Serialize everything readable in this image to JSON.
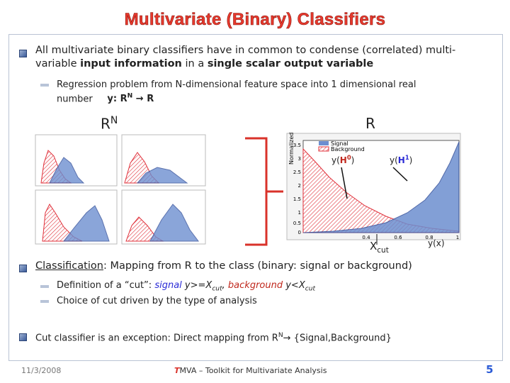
{
  "title": "Multivariate (Binary) Classifiers",
  "intro": {
    "runs": [
      "All multivariate binary classifiers have in common to condense (correlated) multi-variable ",
      "input information",
      " in a ",
      "single scalar output variable"
    ]
  },
  "regression": {
    "runs": [
      "Regression problem from N-dimensional feature space into 1 dimensional real number",
      "y: R",
      "N",
      "→",
      " R"
    ]
  },
  "labels": {
    "rn": "R",
    "rn_sup": "N",
    "r": "R"
  },
  "plot": {
    "legend": [
      "Signal",
      "Background"
    ],
    "ylabel": "Normalized",
    "yticks": [
      "3.5",
      "3",
      "2.5",
      "2",
      "1.5",
      "1",
      "0.5",
      "0"
    ],
    "xticks": [
      "0.4",
      "0.6",
      "0.8",
      "1"
    ],
    "h0": [
      "y(",
      "H",
      "0",
      ")"
    ],
    "h1": [
      "y(",
      "H",
      "1",
      ")"
    ],
    "xcut": [
      "X",
      "cut"
    ],
    "yx": "y(x)"
  },
  "classification": {
    "runs": [
      "Classification",
      ": Mapping from R to the class (binary: signal or background)"
    ]
  },
  "definition": {
    "runs": [
      "Definition of a “cut”: ",
      "signal",
      " y>=X",
      "cut",
      ", ",
      "background",
      " y<X",
      "cut"
    ]
  },
  "choice": "Choice of cut driven by the type of analysis",
  "cut_classifier": {
    "runs": [
      "Cut classifier is an exception: Direct mapping from R",
      "N",
      "→ {Signal,Background}"
    ]
  },
  "footer": {
    "date": "11/3/2008",
    "name": [
      "T",
      "MVA – Toolkit for Multivariate Analysis"
    ],
    "page": "5"
  }
}
